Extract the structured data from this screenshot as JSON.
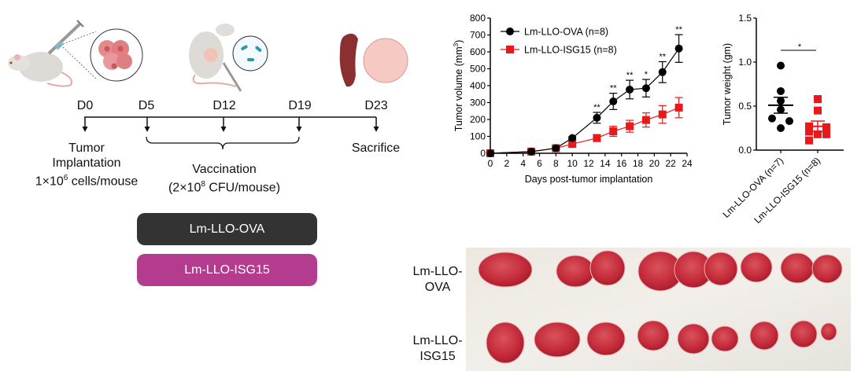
{
  "timeline": {
    "days": [
      "D0",
      "D5",
      "D12",
      "D19",
      "D23"
    ],
    "events": {
      "implant_line1": "Tumor",
      "implant_line2": "Implantation",
      "implant_line3_pre": "1×10",
      "implant_line3_sup": "6",
      "implant_line3_post": " cells/mouse",
      "vacc_line1": "Vaccination",
      "vacc_line2_pre": "(2×10",
      "vacc_line2_sup": "8",
      "vacc_line2_post": " CFU/mouse)",
      "sacrifice": "Sacrifice"
    },
    "groups": [
      {
        "label": "Lm-LLO-OVA",
        "color": "#333333"
      },
      {
        "label": "Lm-LLO-ISG15",
        "color": "#b33c8f"
      }
    ]
  },
  "chart_data": [
    {
      "type": "line",
      "title": "",
      "xlabel": "Days post-tumor implantation",
      "ylabel": "Tumor volume (mm³)",
      "ylabel_main": "Tumor volume (mm",
      "ylabel_sup": "3",
      "ylabel_end": ")",
      "xlim": [
        0,
        24
      ],
      "ylim": [
        0,
        800
      ],
      "xticks": [
        0,
        2,
        4,
        6,
        8,
        10,
        12,
        14,
        16,
        18,
        20,
        22,
        24
      ],
      "yticks": [
        0,
        100,
        200,
        300,
        400,
        500,
        600,
        700,
        800
      ],
      "legend": "top-left",
      "x": [
        0,
        5,
        8,
        10,
        13,
        15,
        17,
        19,
        21,
        23
      ],
      "series": [
        {
          "name": "Lm-LLO-OVA (n=8)",
          "color": "#000000",
          "marker": "circle",
          "values": [
            0,
            10,
            30,
            90,
            210,
            307,
            377,
            385,
            480,
            620
          ],
          "errors": [
            0,
            5,
            6,
            8,
            32,
            48,
            55,
            52,
            62,
            82
          ]
        },
        {
          "name": "Lm-LLO-ISG15 (n=8)",
          "color": "#e8191a",
          "marker": "square",
          "values": [
            0,
            10,
            30,
            55,
            90,
            130,
            160,
            197,
            230,
            270
          ],
          "errors": [
            0,
            5,
            6,
            8,
            20,
            30,
            35,
            42,
            52,
            60
          ]
        }
      ],
      "annotations": [
        {
          "x": 13,
          "text": "**"
        },
        {
          "x": 15,
          "text": "**"
        },
        {
          "x": 17,
          "text": "**"
        },
        {
          "x": 19,
          "text": "*"
        },
        {
          "x": 21,
          "text": "**"
        },
        {
          "x": 23,
          "text": "**"
        }
      ]
    },
    {
      "type": "scatter",
      "title": "",
      "ylabel": "Tumor weight (gm)",
      "ylim": [
        0,
        1.5
      ],
      "yticks": [
        "0.0",
        "0.5",
        "1.0",
        "1.5"
      ],
      "categories": [
        "Lm-LLO-OVA (n=7)",
        "Lm-LLO-ISG15 (n=8)"
      ],
      "series": [
        {
          "name": "Lm-LLO-OVA (n=7)",
          "color": "#000000",
          "marker": "circle",
          "points": [
            0.96,
            0.67,
            0.56,
            0.36,
            0.33,
            0.25,
            0.46
          ],
          "offsets": [
            0,
            0,
            0,
            -1,
            1,
            0,
            0
          ],
          "mean": 0.51,
          "sem": 0.09
        },
        {
          "name": "Lm-LLO-ISG15 (n=8)",
          "color": "#e8191a",
          "marker": "square",
          "points": [
            0.58,
            0.45,
            0.27,
            0.26,
            0.21,
            0.18,
            0.18,
            0.11
          ],
          "offsets": [
            0,
            0,
            -1,
            1,
            -1,
            0,
            1,
            -1
          ],
          "mean": 0.27,
          "sem": 0.06
        }
      ],
      "significance": "*"
    }
  ],
  "photo": {
    "row_labels": [
      {
        "line1": "Lm-LLO-",
        "line2": "OVA"
      },
      {
        "line1": "Lm-LLO-",
        "line2": "ISG15"
      }
    ]
  }
}
